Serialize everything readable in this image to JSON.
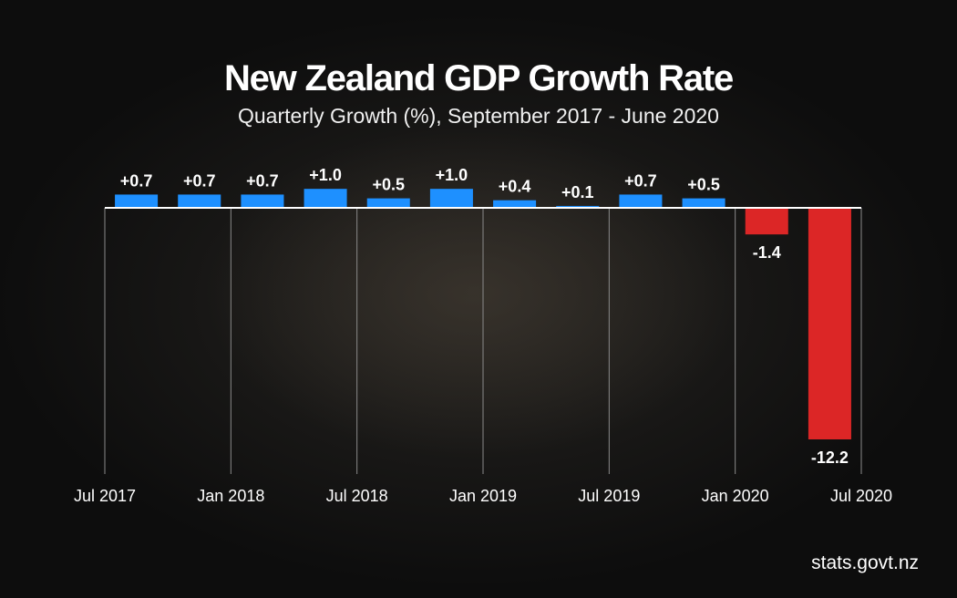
{
  "title": "New Zealand GDP Growth Rate",
  "subtitle": "Quarterly Growth (%), September 2017 - June 2020",
  "source": "stats.govt.nz",
  "colors": {
    "positive": "#1e90ff",
    "negative": "#dc2626",
    "text": "#ffffff",
    "grid": "#8a8a8a"
  },
  "chart_data": {
    "type": "bar",
    "title": "New Zealand GDP Growth Rate",
    "subtitle": "Quarterly Growth (%), September 2017 - June 2020",
    "values": [
      0.7,
      0.7,
      0.7,
      1.0,
      0.5,
      1.0,
      0.4,
      0.1,
      0.7,
      0.5,
      -1.4,
      -12.2
    ],
    "labels": [
      "+0.7",
      "+0.7",
      "+0.7",
      "+1.0",
      "+0.5",
      "+1.0",
      "+0.4",
      "+0.1",
      "+0.7",
      "+0.5",
      "-1.4",
      "-12.2"
    ],
    "x_ticks": [
      "Jul 2017",
      "Jan 2018",
      "Jul 2018",
      "Jan 2019",
      "Jul 2019",
      "Jan 2020",
      "Jul 2020"
    ],
    "ylim": [
      -12.2,
      1.0
    ],
    "grid": true,
    "legend": "none"
  }
}
